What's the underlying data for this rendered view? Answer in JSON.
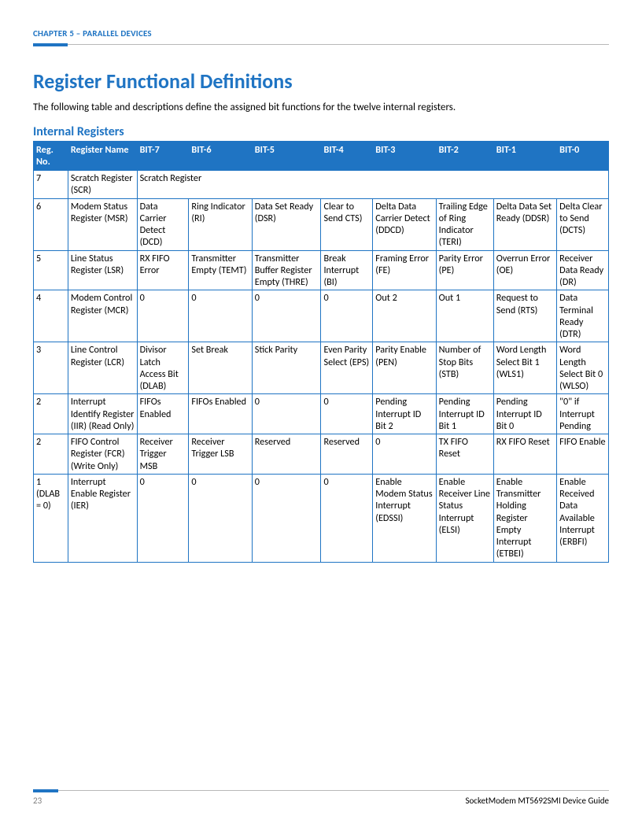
{
  "colors": {
    "accent_blue": "#1f74c3",
    "header_blue": "#1f74c3",
    "table_border": "#1f74c3",
    "rule_gray": "#b8b8b8",
    "body_text": "#000000",
    "page_num_gray": "#7f7f7f"
  },
  "header": {
    "chapter_label": "CHAPTER 5 – PARALLEL DEVICES"
  },
  "headings": {
    "main": "Register Functional Definitions",
    "intro": "The following table and descriptions define the assigned bit functions for the twelve internal registers.",
    "sub": "Internal Registers"
  },
  "table": {
    "col_widths_pct": [
      6,
      12,
      9,
      11,
      12,
      9,
      11,
      10,
      11,
      9
    ],
    "header_bg": "#1f74c3",
    "header_fg": "#ffffff",
    "border_color": "#1f74c3",
    "columns": [
      "Reg. No.",
      "Register Name",
      "BIT-7",
      "BIT-6",
      "BIT-5",
      "BIT-4",
      "BIT-3",
      "BIT-2",
      "BIT-1",
      "BIT-0"
    ],
    "rows": [
      {
        "reg_no": "7",
        "name": "Scratch Register (SCR)",
        "span_all": "Scratch Register"
      },
      {
        "reg_no": "6",
        "name": "Modem Status Register (MSR)",
        "bits": [
          "Data Carrier Detect (DCD)",
          "Ring Indicator (RI)",
          "Data Set Ready (DSR)",
          "Clear to Send CTS)",
          "Delta Data Carrier Detect (DDCD)",
          "Trailing Edge of Ring Indicator (TERI)",
          "Delta Data Set Ready (DDSR)",
          "Delta Clear to Send (DCTS)"
        ]
      },
      {
        "reg_no": "5",
        "name": "Line Status Register (LSR)",
        "bits": [
          "RX FIFO Error",
          "Transmitter Empty (TEMT)",
          "Transmitter Buffer Register Empty (THRE)",
          "Break Interrupt (BI)",
          "Framing Error (FE)",
          "Parity Error (PE)",
          "Overrun Error (OE)",
          "Receiver Data Ready (DR)"
        ]
      },
      {
        "reg_no": "4",
        "name": "Modem Control Register (MCR)",
        "bits": [
          "0",
          "0",
          "0",
          "0",
          "Out 2",
          "Out 1",
          "Request to Send (RTS)",
          "Data Terminal Ready (DTR)"
        ]
      },
      {
        "reg_no": "3",
        "name": "Line Control Register (LCR)",
        "bits": [
          "Divisor Latch Access Bit (DLAB)",
          "Set Break",
          "Stick Parity",
          "Even Parity Select (EPS)",
          "Parity Enable (PEN)",
          "Number of Stop Bits (STB)",
          "Word Length Select Bit 1 (WLS1)",
          "Word Length Select Bit 0 (WLSO)"
        ]
      },
      {
        "reg_no": "2",
        "name": "Interrupt Identify Register (IIR) (Read Only)",
        "bits": [
          "FIFOs Enabled",
          "FIFOs Enabled",
          "0",
          "0",
          "Pending Interrupt ID Bit 2",
          "Pending Interrupt ID Bit 1",
          "Pending Interrupt ID Bit 0",
          "\"0\" if Interrupt Pending"
        ]
      },
      {
        "reg_no": "2",
        "name": "FIFO Control Register (FCR) (Write Only)",
        "bits": [
          "Receiver Trigger MSB",
          "Receiver Trigger LSB",
          "Reserved",
          "Reserved",
          "0",
          "TX FIFO Reset",
          "RX FIFO Reset",
          "FIFO Enable"
        ]
      },
      {
        "reg_no": "1 (DLAB = 0)",
        "name": "Interrupt Enable Register (IER)",
        "bits": [
          "0",
          "0",
          "0",
          "0",
          "Enable Modem Status Interrupt (EDSSI)",
          "Enable Receiver Line Status Interrupt (ELSI)",
          "Enable Transmitter Holding Register Empty Interrupt (ETBEI)",
          "Enable Received Data Available Interrupt (ERBFI)"
        ]
      }
    ]
  },
  "footer": {
    "page_number": "23",
    "doc_title": "SocketModem MT5692SMI Device Guide"
  }
}
